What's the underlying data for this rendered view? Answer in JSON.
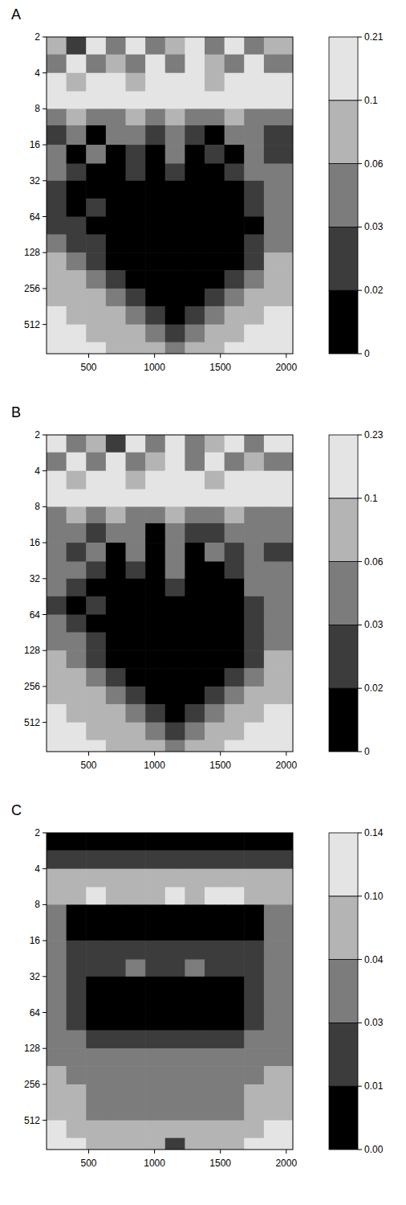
{
  "chart_data": [
    {
      "type": "heatmap",
      "title": "A",
      "log": "y",
      "xlim": [
        180,
        2050
      ],
      "ylim": [
        2,
        900
      ],
      "xticks": [
        500,
        1000,
        1500,
        2000
      ],
      "yticks": [
        2,
        4,
        8,
        16,
        32,
        64,
        128,
        256,
        512
      ],
      "x_bins": [
        180,
        330,
        480,
        630,
        780,
        930,
        1080,
        1230,
        1380,
        1530,
        1680,
        1830,
        2050
      ],
      "y_bins": [
        2,
        2.8,
        4,
        5.7,
        8,
        11,
        16,
        23,
        32,
        45,
        64,
        90,
        128,
        180,
        256,
        360,
        512,
        720,
        900
      ],
      "cells": [
        [
          0.08,
          0.02,
          0.1,
          0.04,
          0.12,
          0.03,
          0.08,
          0.15,
          0.04,
          0.1,
          0.03,
          0.08
        ],
        [
          0.05,
          0.12,
          0.03,
          0.08,
          0.04,
          0.12,
          0.05,
          0.1,
          0.08,
          0.03,
          0.12,
          0.05
        ],
        [
          0.12,
          0.08,
          0.15,
          0.1,
          0.08,
          0.12,
          0.15,
          0.12,
          0.08,
          0.15,
          0.12,
          0.1
        ],
        [
          0.15,
          0.12,
          0.1,
          0.15,
          0.12,
          0.15,
          0.18,
          0.15,
          0.12,
          0.18,
          0.15,
          0.12
        ],
        [
          0.04,
          0.08,
          0.03,
          0.05,
          0.08,
          0.04,
          0.08,
          0.05,
          0.04,
          0.08,
          0.05,
          0.04
        ],
        [
          0.025,
          0.04,
          0.015,
          0.03,
          0.045,
          0.02,
          0.04,
          0.025,
          0.015,
          0.04,
          0.03,
          0.025
        ],
        [
          0.03,
          0.015,
          0.04,
          0.01,
          0.025,
          0.015,
          0.04,
          0.01,
          0.025,
          0.015,
          0.035,
          0.02
        ],
        [
          0.04,
          0.025,
          0.015,
          0.01,
          0.02,
          0.01,
          0.025,
          0.01,
          0.015,
          0.02,
          0.04,
          0.05
        ],
        [
          0.025,
          0.015,
          0.01,
          0.01,
          0.01,
          0.01,
          0.015,
          0.01,
          0.01,
          0.015,
          0.025,
          0.04
        ],
        [
          0.02,
          0.01,
          0.025,
          0.01,
          0.01,
          0.01,
          0.01,
          0.01,
          0.01,
          0.01,
          0.02,
          0.035
        ],
        [
          0.025,
          0.02,
          0.01,
          0.01,
          0.01,
          0.01,
          0.01,
          0.01,
          0.01,
          0.01,
          0.015,
          0.03
        ],
        [
          0.05,
          0.025,
          0.02,
          0.015,
          0.01,
          0.01,
          0.01,
          0.01,
          0.01,
          0.015,
          0.025,
          0.045
        ],
        [
          0.08,
          0.045,
          0.025,
          0.01,
          0.01,
          0.01,
          0.01,
          0.01,
          0.01,
          0.01,
          0.025,
          0.07
        ],
        [
          0.08,
          0.07,
          0.045,
          0.025,
          0.01,
          0.01,
          0.01,
          0.01,
          0.01,
          0.025,
          0.045,
          0.08
        ],
        [
          0.08,
          0.08,
          0.07,
          0.045,
          0.025,
          0.01,
          0.01,
          0.01,
          0.025,
          0.045,
          0.07,
          0.08
        ],
        [
          0.15,
          0.08,
          0.08,
          0.07,
          0.045,
          0.025,
          0.015,
          0.025,
          0.045,
          0.07,
          0.08,
          0.15
        ],
        [
          0.15,
          0.15,
          0.08,
          0.08,
          0.07,
          0.045,
          0.025,
          0.045,
          0.07,
          0.08,
          0.15,
          0.15
        ],
        [
          0.15,
          0.15,
          0.15,
          0.08,
          0.08,
          0.07,
          0.045,
          0.07,
          0.08,
          0.15,
          0.15,
          0.15
        ]
      ],
      "colorbar": {
        "ticks": [
          0,
          0.02,
          0.03,
          0.06,
          0.1,
          0.21
        ],
        "colors": [
          "#000000",
          "#3c3c3c",
          "#7c7c7c",
          "#b4b4b4",
          "#e4e4e4"
        ]
      }
    },
    {
      "type": "heatmap",
      "title": "B",
      "log": "y",
      "xlim": [
        180,
        2050
      ],
      "ylim": [
        2,
        900
      ],
      "xticks": [
        500,
        1000,
        1500,
        2000
      ],
      "yticks": [
        2,
        4,
        8,
        16,
        32,
        64,
        128,
        256,
        512
      ],
      "x_bins": [
        180,
        330,
        480,
        630,
        780,
        930,
        1080,
        1230,
        1380,
        1530,
        1680,
        1830,
        2050
      ],
      "y_bins": [
        2,
        2.8,
        4,
        5.7,
        8,
        11,
        16,
        23,
        32,
        45,
        64,
        90,
        128,
        180,
        256,
        360,
        512,
        720,
        900
      ],
      "cells": [
        [
          0.1,
          0.03,
          0.08,
          0.02,
          0.1,
          0.05,
          0.12,
          0.04,
          0.08,
          0.15,
          0.03,
          0.1
        ],
        [
          0.04,
          0.1,
          0.05,
          0.12,
          0.03,
          0.08,
          0.1,
          0.05,
          0.12,
          0.04,
          0.08,
          0.04
        ],
        [
          0.12,
          0.08,
          0.15,
          0.1,
          0.08,
          0.12,
          0.15,
          0.12,
          0.08,
          0.15,
          0.12,
          0.1
        ],
        [
          0.15,
          0.12,
          0.12,
          0.15,
          0.1,
          0.15,
          0.18,
          0.12,
          0.15,
          0.18,
          0.12,
          0.15
        ],
        [
          0.05,
          0.08,
          0.04,
          0.08,
          0.05,
          0.04,
          0.08,
          0.04,
          0.05,
          0.08,
          0.04,
          0.05
        ],
        [
          0.03,
          0.045,
          0.02,
          0.04,
          0.03,
          0.015,
          0.045,
          0.025,
          0.02,
          0.04,
          0.03,
          0.035
        ],
        [
          0.045,
          0.025,
          0.04,
          0.015,
          0.03,
          0.01,
          0.04,
          0.015,
          0.03,
          0.02,
          0.04,
          0.025
        ],
        [
          0.05,
          0.035,
          0.02,
          0.01,
          0.025,
          0.01,
          0.03,
          0.015,
          0.01,
          0.025,
          0.04,
          0.05
        ],
        [
          0.04,
          0.02,
          0.01,
          0.015,
          0.01,
          0.01,
          0.02,
          0.01,
          0.01,
          0.015,
          0.03,
          0.045
        ],
        [
          0.025,
          0.015,
          0.025,
          0.01,
          0.01,
          0.01,
          0.01,
          0.01,
          0.01,
          0.01,
          0.025,
          0.04
        ],
        [
          0.045,
          0.025,
          0.01,
          0.01,
          0.01,
          0.01,
          0.01,
          0.01,
          0.01,
          0.01,
          0.02,
          0.04
        ],
        [
          0.05,
          0.045,
          0.02,
          0.01,
          0.01,
          0.01,
          0.01,
          0.01,
          0.01,
          0.015,
          0.025,
          0.05
        ],
        [
          0.08,
          0.045,
          0.025,
          0.01,
          0.01,
          0.01,
          0.01,
          0.01,
          0.01,
          0.01,
          0.025,
          0.07
        ],
        [
          0.08,
          0.07,
          0.045,
          0.025,
          0.015,
          0.01,
          0.01,
          0.01,
          0.015,
          0.025,
          0.045,
          0.08
        ],
        [
          0.08,
          0.08,
          0.07,
          0.045,
          0.025,
          0.015,
          0.01,
          0.015,
          0.025,
          0.045,
          0.07,
          0.08
        ],
        [
          0.15,
          0.08,
          0.08,
          0.07,
          0.045,
          0.025,
          0.015,
          0.025,
          0.045,
          0.07,
          0.08,
          0.15
        ],
        [
          0.15,
          0.15,
          0.08,
          0.08,
          0.07,
          0.045,
          0.025,
          0.045,
          0.07,
          0.08,
          0.15,
          0.15
        ],
        [
          0.15,
          0.15,
          0.15,
          0.08,
          0.08,
          0.07,
          0.045,
          0.07,
          0.08,
          0.15,
          0.15,
          0.15
        ]
      ],
      "colorbar": {
        "ticks": [
          0,
          0.02,
          0.03,
          0.06,
          0.1,
          0.23
        ],
        "colors": [
          "#000000",
          "#3c3c3c",
          "#7c7c7c",
          "#b4b4b4",
          "#e4e4e4"
        ]
      }
    },
    {
      "type": "heatmap",
      "title": "C",
      "log": "y",
      "xlim": [
        180,
        2050
      ],
      "ylim": [
        2,
        900
      ],
      "xticks": [
        500,
        1000,
        1500,
        2000
      ],
      "yticks": [
        2,
        4,
        8,
        16,
        32,
        64,
        128,
        256,
        512
      ],
      "x_bins": [
        180,
        330,
        480,
        630,
        780,
        930,
        1080,
        1230,
        1380,
        1530,
        1680,
        1830,
        2050
      ],
      "y_bins": [
        2,
        2.8,
        4,
        5.7,
        8,
        11,
        16,
        23,
        32,
        45,
        64,
        90,
        128,
        180,
        256,
        360,
        512,
        720,
        900
      ],
      "cells": [
        [
          0.005,
          0.005,
          0.005,
          0.005,
          0.005,
          0.005,
          0.005,
          0.005,
          0.005,
          0.005,
          0.005,
          0.005
        ],
        [
          0.02,
          0.02,
          0.02,
          0.02,
          0.02,
          0.02,
          0.02,
          0.02,
          0.02,
          0.02,
          0.02,
          0.02
        ],
        [
          0.045,
          0.07,
          0.08,
          0.07,
          0.045,
          0.07,
          0.08,
          0.08,
          0.07,
          0.08,
          0.07,
          0.045
        ],
        [
          0.045,
          0.08,
          0.12,
          0.08,
          0.045,
          0.08,
          0.12,
          0.08,
          0.12,
          0.12,
          0.08,
          0.045
        ],
        [
          0.035,
          0.005,
          0.005,
          0.005,
          0.005,
          0.005,
          0.005,
          0.005,
          0.005,
          0.005,
          0.005,
          0.035
        ],
        [
          0.035,
          0.005,
          0.005,
          0.005,
          0.005,
          0.005,
          0.005,
          0.005,
          0.005,
          0.005,
          0.005,
          0.035
        ],
        [
          0.035,
          0.02,
          0.02,
          0.02,
          0.02,
          0.02,
          0.02,
          0.02,
          0.02,
          0.02,
          0.02,
          0.035
        ],
        [
          0.035,
          0.02,
          0.02,
          0.02,
          0.035,
          0.02,
          0.02,
          0.035,
          0.02,
          0.02,
          0.02,
          0.035
        ],
        [
          0.035,
          0.02,
          0.005,
          0.005,
          0.005,
          0.005,
          0.005,
          0.005,
          0.005,
          0.005,
          0.02,
          0.035
        ],
        [
          0.035,
          0.02,
          0.005,
          0.005,
          0.005,
          0.005,
          0.005,
          0.005,
          0.005,
          0.005,
          0.02,
          0.035
        ],
        [
          0.035,
          0.02,
          0.005,
          0.005,
          0.005,
          0.005,
          0.005,
          0.005,
          0.005,
          0.005,
          0.02,
          0.035
        ],
        [
          0.035,
          0.035,
          0.02,
          0.02,
          0.02,
          0.02,
          0.02,
          0.02,
          0.02,
          0.02,
          0.035,
          0.035
        ],
        [
          0.035,
          0.035,
          0.035,
          0.035,
          0.035,
          0.035,
          0.035,
          0.035,
          0.035,
          0.035,
          0.035,
          0.035
        ],
        [
          0.05,
          0.035,
          0.035,
          0.035,
          0.035,
          0.035,
          0.035,
          0.035,
          0.035,
          0.035,
          0.035,
          0.05
        ],
        [
          0.05,
          0.045,
          0.035,
          0.035,
          0.035,
          0.035,
          0.035,
          0.035,
          0.035,
          0.035,
          0.045,
          0.05
        ],
        [
          0.07,
          0.05,
          0.035,
          0.035,
          0.035,
          0.035,
          0.035,
          0.035,
          0.035,
          0.035,
          0.05,
          0.07
        ],
        [
          0.12,
          0.07,
          0.05,
          0.05,
          0.05,
          0.05,
          0.05,
          0.05,
          0.05,
          0.05,
          0.07,
          0.12
        ],
        [
          0.12,
          0.12,
          0.07,
          0.07,
          0.07,
          0.05,
          0.02,
          0.05,
          0.07,
          0.07,
          0.12,
          0.12
        ]
      ],
      "colorbar": {
        "ticks": [
          {
            "value": 0,
            "label": "0.00"
          },
          0.01,
          0.03,
          0.04,
          {
            "value": 0.1,
            "label": "0.10"
          },
          0.14
        ],
        "colors": [
          "#000000",
          "#3c3c3c",
          "#7c7c7c",
          "#b4b4b4",
          "#e4e4e4"
        ]
      }
    }
  ]
}
